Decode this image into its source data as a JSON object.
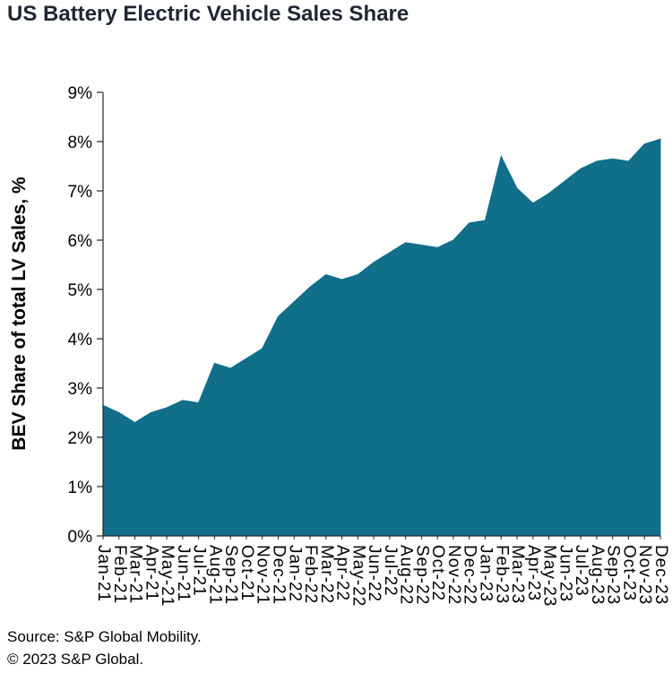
{
  "title": "US Battery Electric Vehicle Sales Share",
  "footer": {
    "source": "Source: S&P Global Mobility.",
    "copyright": "© 2023 S&P Global."
  },
  "chart_data": {
    "type": "area",
    "title": "US Battery Electric Vehicle Sales Share",
    "xlabel": "",
    "ylabel": "BEV Share of total LV Sales, %",
    "ylim": [
      0,
      9
    ],
    "grid": false,
    "legend": "none",
    "ytick_labels": [
      "0%",
      "1%",
      "2%",
      "3%",
      "4%",
      "5%",
      "6%",
      "7%",
      "8%",
      "9%"
    ],
    "categories": [
      "Jan-21",
      "Feb-21",
      "Mar-21",
      "Apr-21",
      "May-21",
      "Jun-21",
      "Jul-21",
      "Aug-21",
      "Sep-21",
      "Oct-21",
      "Nov-21",
      "Dec-21",
      "Jan-22",
      "Feb-22",
      "Mar-22",
      "Apr-22",
      "May-22",
      "Jun-22",
      "Jul-22",
      "Aug-22",
      "Sep-22",
      "Oct-22",
      "Nov-22",
      "Dec-22",
      "Jan-23",
      "Feb-23",
      "Mar-23",
      "Apr-23",
      "May-23",
      "Jun-23",
      "Jul-23",
      "Aug-23",
      "Sep-23",
      "Oct-23",
      "Nov-23",
      "Dec-23"
    ],
    "values": [
      2.65,
      2.5,
      2.3,
      2.5,
      2.6,
      2.75,
      2.7,
      3.5,
      3.4,
      3.6,
      3.8,
      4.45,
      4.75,
      5.05,
      5.3,
      5.2,
      5.3,
      5.55,
      5.75,
      5.95,
      5.9,
      5.85,
      6.0,
      6.35,
      6.4,
      7.7,
      7.05,
      6.75,
      6.95,
      7.2,
      7.45,
      7.6,
      7.65,
      7.6,
      7.95,
      8.05
    ],
    "series_name": "BEV share of total LV sales",
    "area_color": "#116f8a",
    "axis_color": "#262626",
    "text_color": "#000000"
  }
}
